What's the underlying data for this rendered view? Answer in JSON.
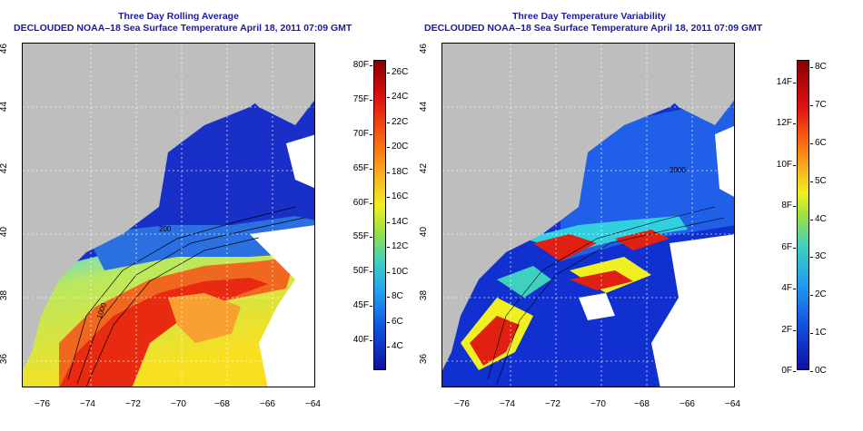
{
  "left_panel": {
    "title_line1": "Three Day Rolling Average",
    "title_line2": "DECLOUDED NOAA–18 Sea Surface Temperature April 18, 2011 07:09 GMT",
    "colorbar_f": [
      "80F",
      "75F",
      "70F",
      "65F",
      "60F",
      "55F",
      "50F",
      "45F",
      "40F"
    ],
    "colorbar_c": [
      "26C",
      "24C",
      "22C",
      "20C",
      "18C",
      "16C",
      "14C",
      "12C",
      "10C",
      "8C",
      "6C",
      "4C"
    ]
  },
  "right_panel": {
    "title_line1": "Three Day Temperature Variability",
    "title_line2": "DECLOUDED NOAA–18 Sea Surface Temperature April 18, 2011 07:09 GMT",
    "colorbar_f": [
      "14F",
      "12F",
      "10F",
      "8F",
      "6F",
      "4F",
      "2F",
      "0F"
    ],
    "colorbar_c": [
      "8C",
      "7C",
      "6C",
      "5C",
      "4C",
      "3C",
      "2C",
      "1C",
      "0C"
    ]
  },
  "axes": {
    "x_ticks": [
      "−76",
      "−74",
      "−72",
      "−70",
      "−68",
      "−66",
      "−64"
    ],
    "y_ticks": [
      "46",
      "44",
      "42",
      "40",
      "38",
      "36"
    ]
  },
  "contour_labels": [
    "200",
    "1000",
    "2000"
  ],
  "colors": {
    "title": "#1a1aa0",
    "land": "#bebebe",
    "cold": "#1230c8",
    "warm": "#e83010"
  }
}
